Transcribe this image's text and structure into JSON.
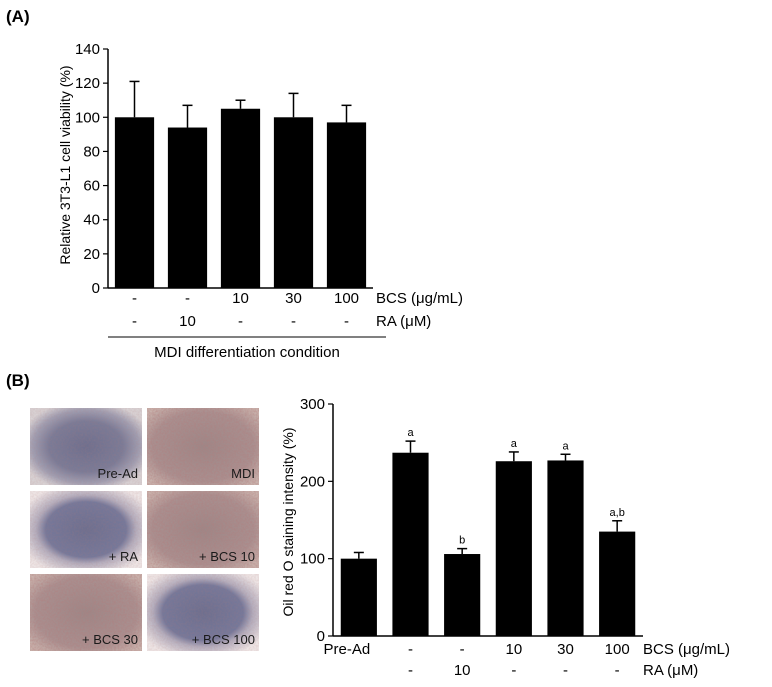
{
  "panel_a": {
    "label": "(A)",
    "condition_label": "MDI differentiation condition"
  },
  "panel_b": {
    "label": "(B)",
    "photos": [
      {
        "label": "Pre-Ad",
        "tone": "purple"
      },
      {
        "label": "MDI",
        "tone": "stained"
      },
      {
        "label": "+ RA",
        "tone": "purple"
      },
      {
        "label": "+ BCS 10",
        "tone": "stained"
      },
      {
        "label": "+ BCS 30",
        "tone": "stained"
      },
      {
        "label": "+ BCS 100",
        "tone": "purple"
      }
    ]
  },
  "chart_data": [
    {
      "type": "bar",
      "ylabel": "Relative 3T3-L1 cell viability (%)",
      "ylim": [
        0,
        140
      ],
      "yticks": [
        0,
        20,
        40,
        60,
        80,
        100,
        120,
        140
      ],
      "grid": false,
      "categories": [
        "1",
        "2",
        "3",
        "4",
        "5"
      ],
      "values": [
        100,
        94,
        105,
        100,
        97
      ],
      "errors": [
        21,
        13,
        5,
        14,
        10
      ],
      "row_labels": [
        {
          "name": "BCS (μg/mL)",
          "values": [
            "-",
            "-",
            "10",
            "30",
            "100"
          ]
        },
        {
          "name": "RA (μM)",
          "values": [
            "-",
            "10",
            "-",
            "-",
            "-"
          ]
        }
      ],
      "bar_color": "#000000"
    },
    {
      "type": "bar",
      "ylabel": "Oil red O staining intensity (%)",
      "ylim": [
        0,
        300
      ],
      "yticks": [
        0,
        100,
        200,
        300
      ],
      "grid": false,
      "categories": [
        "1",
        "2",
        "3",
        "4",
        "5",
        "6"
      ],
      "values": [
        100,
        237,
        106,
        226,
        227,
        135
      ],
      "errors": [
        8,
        15,
        7,
        12,
        8,
        14
      ],
      "annotations": [
        "",
        "a",
        "b",
        "a",
        "a",
        "a,b"
      ],
      "row_labels": [
        {
          "name": "BCS (μg/mL)",
          "values": [
            "Pre-Ad",
            "-",
            "-",
            "10",
            "30",
            "100"
          ]
        },
        {
          "name": "RA (μM)",
          "values": [
            "",
            "-",
            "10",
            "-",
            "-",
            "-"
          ]
        }
      ],
      "bar_color": "#000000"
    }
  ]
}
